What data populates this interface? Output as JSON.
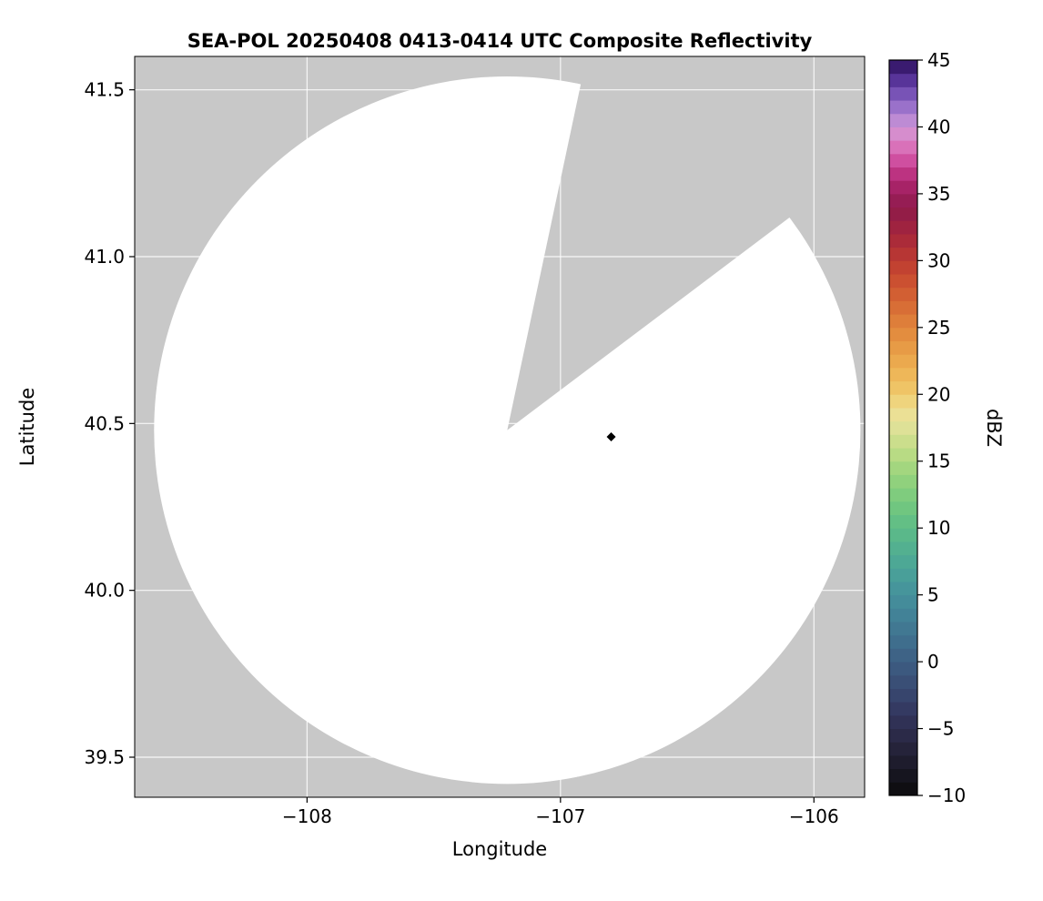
{
  "chart_data": {
    "type": "radar_composite_reflectivity_map",
    "title": "SEA-POL 20250408 0413-0414 UTC Composite Reflectivity",
    "xlabel": "Longitude",
    "ylabel": "Latitude",
    "xlim": [
      -108.68,
      -105.8
    ],
    "ylim": [
      39.38,
      41.6
    ],
    "xticks": [
      {
        "value": -108,
        "label": "−108"
      },
      {
        "value": -107,
        "label": "−107"
      },
      {
        "value": -106,
        "label": "−106"
      }
    ],
    "yticks": [
      {
        "value": 39.5,
        "label": "39.5"
      },
      {
        "value": 40.0,
        "label": "40.0"
      },
      {
        "value": 40.5,
        "label": "40.5"
      },
      {
        "value": 41.0,
        "label": "41.0"
      },
      {
        "value": 41.5,
        "label": "41.5"
      }
    ],
    "grid": true,
    "grid_color": "#ffffff",
    "plot_bg_color": "#c8c8c8",
    "radar_coverage": {
      "center_lon": -107.21,
      "center_lat": 40.48,
      "radius_deg_lat": 1.06,
      "missing_sector_azimuth_deg": [
        12,
        53
      ],
      "fill_color": "#ffffff"
    },
    "echoes": [],
    "marker": {
      "lon": -106.8,
      "lat": 40.46,
      "shape": "diamond",
      "color": "#000000"
    },
    "colorbar": {
      "label": "dBZ",
      "min": -10,
      "max": 45,
      "band_step": 1,
      "ticks": [
        {
          "value": 45,
          "label": "45"
        },
        {
          "value": 40,
          "label": "40"
        },
        {
          "value": 35,
          "label": "35"
        },
        {
          "value": 30,
          "label": "30"
        },
        {
          "value": 25,
          "label": "25"
        },
        {
          "value": 20,
          "label": "20"
        },
        {
          "value": 15,
          "label": "15"
        },
        {
          "value": 10,
          "label": "10"
        },
        {
          "value": 5,
          "label": "5"
        },
        {
          "value": 0,
          "label": "0"
        },
        {
          "value": -5,
          "label": "−5"
        },
        {
          "value": -10,
          "label": "−10"
        }
      ],
      "stops": [
        [
          -10,
          "#0b0b0b"
        ],
        [
          -8,
          "#1a1826"
        ],
        [
          -6,
          "#282641"
        ],
        [
          -4,
          "#32355c"
        ],
        [
          -2,
          "#394a72"
        ],
        [
          0,
          "#3d5e83"
        ],
        [
          2,
          "#407390"
        ],
        [
          4,
          "#438799"
        ],
        [
          6,
          "#479a9b"
        ],
        [
          8,
          "#4fac93"
        ],
        [
          10,
          "#5dbc87"
        ],
        [
          12,
          "#76c97e"
        ],
        [
          14,
          "#98d47d"
        ],
        [
          16,
          "#c2dd86"
        ],
        [
          18,
          "#e7e29c"
        ],
        [
          19,
          "#eedd8e"
        ],
        [
          20,
          "#f0cb6c"
        ],
        [
          22,
          "#edb052"
        ],
        [
          24,
          "#e59442"
        ],
        [
          26,
          "#db7637"
        ],
        [
          28,
          "#cf5731"
        ],
        [
          30,
          "#bd3b31"
        ],
        [
          32,
          "#a5263c"
        ],
        [
          34,
          "#8d1a4b"
        ],
        [
          36,
          "#b02670"
        ],
        [
          37,
          "#c83f92"
        ],
        [
          38,
          "#d65fae"
        ],
        [
          39,
          "#dc82c4"
        ],
        [
          40,
          "#cf97d6"
        ],
        [
          41,
          "#ab7fd2"
        ],
        [
          42,
          "#8862c2"
        ],
        [
          43,
          "#6844aa"
        ],
        [
          44,
          "#482488"
        ],
        [
          45,
          "#2c1257"
        ]
      ]
    }
  }
}
